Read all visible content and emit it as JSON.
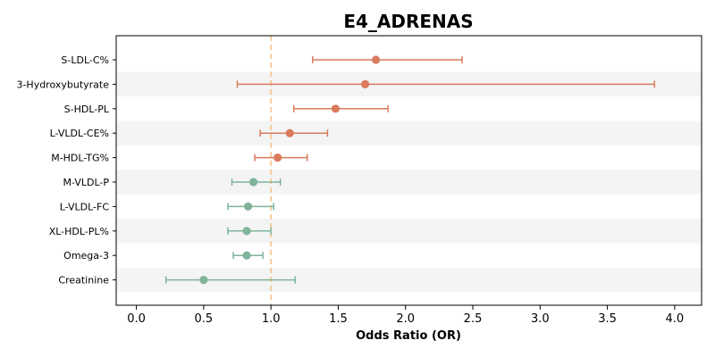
{
  "chart_data": {
    "type": "forest",
    "title": "E4_ADRENAS",
    "xlabel": "Odds Ratio (OR)",
    "xlim": [
      -0.15,
      4.2
    ],
    "x_ticks": [
      "0.0",
      "0.5",
      "1.0",
      "1.5",
      "2.0",
      "2.5",
      "3.0",
      "3.5",
      "4.0"
    ],
    "reference_line": 1.0,
    "grid": false,
    "row_shading": "alternating",
    "colors": {
      "above_one": "#d97a5c",
      "below_one": "#7fb39a",
      "reference": "#f5c48a",
      "shade": "#f4f4f4"
    },
    "rows": [
      {
        "label": "S-LDL-C%",
        "or": 1.78,
        "lo": 1.31,
        "hi": 2.42
      },
      {
        "label": "3-Hydroxybutyrate",
        "or": 1.7,
        "lo": 0.75,
        "hi": 3.85
      },
      {
        "label": "S-HDL-PL",
        "or": 1.48,
        "lo": 1.17,
        "hi": 1.87
      },
      {
        "label": "L-VLDL-CE%",
        "or": 1.14,
        "lo": 0.92,
        "hi": 1.42
      },
      {
        "label": "M-HDL-TG%",
        "or": 1.05,
        "lo": 0.88,
        "hi": 1.27
      },
      {
        "label": "M-VLDL-P",
        "or": 0.87,
        "lo": 0.71,
        "hi": 1.07
      },
      {
        "label": "L-VLDL-FC",
        "or": 0.83,
        "lo": 0.68,
        "hi": 1.02
      },
      {
        "label": "XL-HDL-PL%",
        "or": 0.82,
        "lo": 0.68,
        "hi": 1.0
      },
      {
        "label": "Omega-3",
        "or": 0.82,
        "lo": 0.72,
        "hi": 0.94
      },
      {
        "label": "Creatinine",
        "or": 0.5,
        "lo": 0.22,
        "hi": 1.18
      }
    ]
  }
}
